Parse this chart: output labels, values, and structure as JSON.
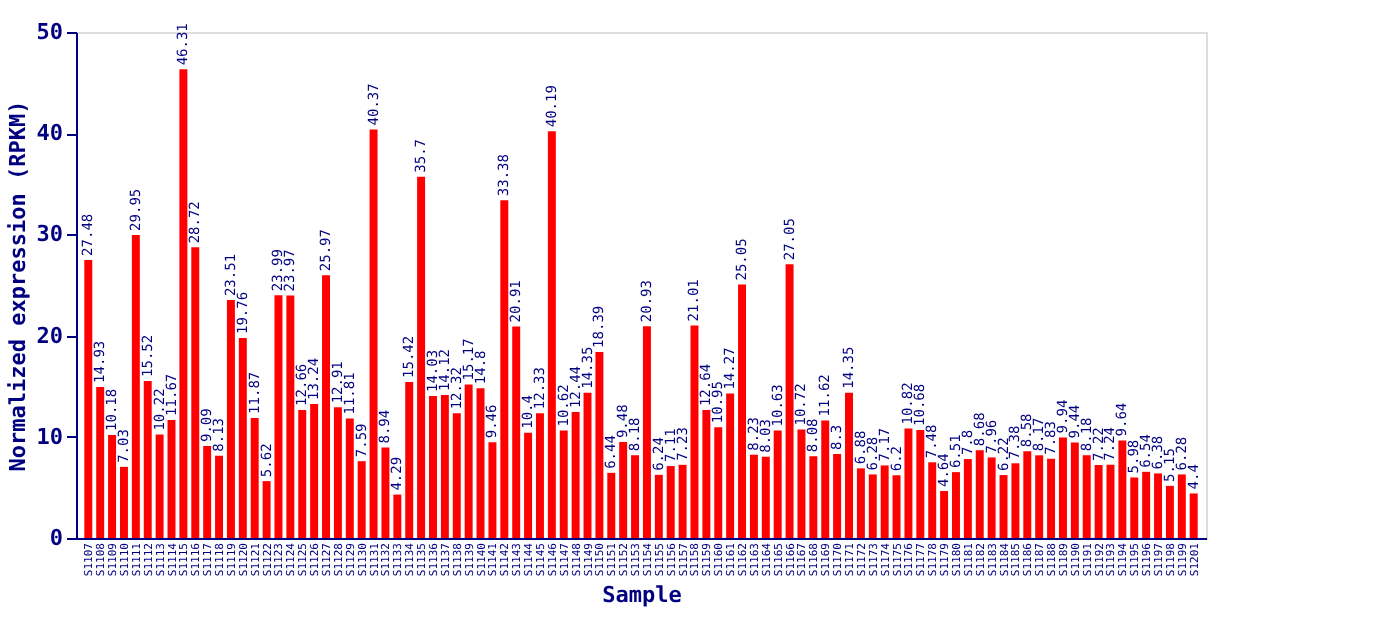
{
  "chart_data": {
    "type": "bar",
    "xlabel": "Sample",
    "ylabel": "Normalized expression (RPKM)",
    "categories": [
      "S1107",
      "S1108",
      "S1109",
      "S1110",
      "S1111",
      "S1112",
      "S1113",
      "S1114",
      "S1115",
      "S1116",
      "S1117",
      "S1118",
      "S1119",
      "S1120",
      "S1121",
      "S1122",
      "S1123",
      "S1124",
      "S1125",
      "S1126",
      "S1127",
      "S1128",
      "S1129",
      "S1130",
      "S1131",
      "S1132",
      "S1133",
      "S1134",
      "S1135",
      "S1136",
      "S1137",
      "S1138",
      "S1139",
      "S1140",
      "S1141",
      "S1142",
      "S1143",
      "S1144",
      "S1145",
      "S1146",
      "S1147",
      "S1148",
      "S1149",
      "S1150",
      "S1151",
      "S1152",
      "S1153",
      "S1154",
      "S1155",
      "S1156",
      "S1157",
      "S1158",
      "S1159",
      "S1160",
      "S1161",
      "S1162",
      "S1163",
      "S1164",
      "S1165",
      "S1166",
      "S1167",
      "S1168",
      "S1169",
      "S1170",
      "S1171",
      "S1172",
      "S1173",
      "S1174",
      "S1175",
      "S1176",
      "S1177",
      "S1178",
      "S1179",
      "S1180",
      "S1181",
      "S1182",
      "S1183",
      "S1184",
      "S1185",
      "S1186",
      "S1187",
      "S1188",
      "S1189",
      "S1190",
      "S1191",
      "S1192",
      "S1193",
      "S1194",
      "S1195",
      "S1196",
      "S1197",
      "S1198",
      "S1199",
      "S1201"
    ],
    "values": [
      27.48,
      14.93,
      10.18,
      7.03,
      29.95,
      15.52,
      10.22,
      11.67,
      46.31,
      28.72,
      9.09,
      8.13,
      23.51,
      19.76,
      11.87,
      5.62,
      23.99,
      23.97,
      12.66,
      13.24,
      25.97,
      12.91,
      11.81,
      7.59,
      40.37,
      8.94,
      4.29,
      15.42,
      35.7,
      14.03,
      14.12,
      12.32,
      15.17,
      14.8,
      9.46,
      33.38,
      20.91,
      10.4,
      12.33,
      40.19,
      10.62,
      12.44,
      14.35,
      18.39,
      6.44,
      9.48,
      8.18,
      20.93,
      6.24,
      7.11,
      7.23,
      21.01,
      12.64,
      10.95,
      14.27,
      25.05,
      8.23,
      8.03,
      10.63,
      27.05,
      10.72,
      8.08,
      11.62,
      8.3,
      14.35,
      6.88,
      6.28,
      7.17,
      6.2,
      10.82,
      10.68,
      7.48,
      4.64,
      6.51,
      7.8,
      8.68,
      7.96,
      6.22,
      7.38,
      8.58,
      8.17,
      7.83,
      9.94,
      9.44,
      8.18,
      7.22,
      7.24,
      9.64,
      5.98,
      6.54,
      6.38,
      5.15,
      6.28,
      4.4
    ],
    "color": "#ff0000",
    "ylim": [
      0,
      50
    ],
    "yticks": [
      0,
      10,
      20,
      30,
      40,
      50
    ],
    "grid": false,
    "data_labels": true
  }
}
